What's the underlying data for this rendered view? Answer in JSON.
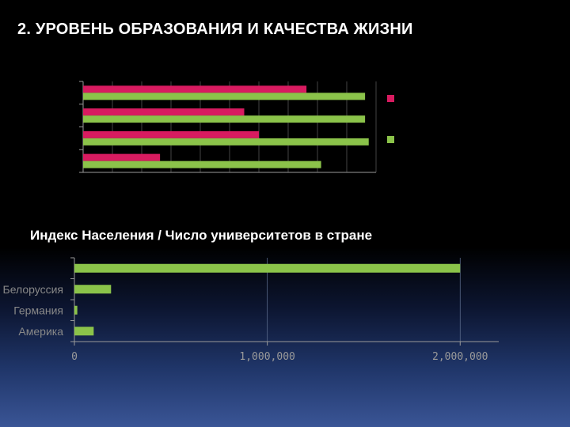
{
  "slide": {
    "title": "2. УРОВЕНЬ ОБРАЗОВАНИЯ И КАЧЕСТВА ЖИЗНИ",
    "subtitle": "Индекс Населения / Число университетов в стране"
  },
  "colors": {
    "background": "#000000",
    "series_magenta": "#d81b60",
    "series_green": "#8bc34a",
    "axis": "#9a9a9a"
  },
  "chart_data": [
    {
      "type": "bar",
      "orientation": "horizontal",
      "categories": [
        "",
        "",
        "",
        ""
      ],
      "series": [
        {
          "values": [
            105,
            240,
            220,
            305
          ],
          "color": "#d81b60"
        },
        {
          "values": [
            325,
            390,
            385,
            385
          ],
          "color": "#8bc34a"
        }
      ],
      "xlim": [
        0,
        400
      ],
      "grid": true,
      "legend": "right",
      "tick_labels_visible": false
    },
    {
      "type": "bar",
      "orientation": "horizontal",
      "categories": [
        "Америка",
        "Германия",
        "Белоруссия",
        ""
      ],
      "values": [
        100000,
        15000,
        190000,
        2000000
      ],
      "color": "#8bc34a",
      "xlim": [
        0,
        2200000
      ],
      "xticks": [
        0,
        1000000,
        2000000
      ],
      "xtick_labels": [
        "0",
        "1,000,000",
        "2,000,000"
      ],
      "grid": true
    }
  ]
}
